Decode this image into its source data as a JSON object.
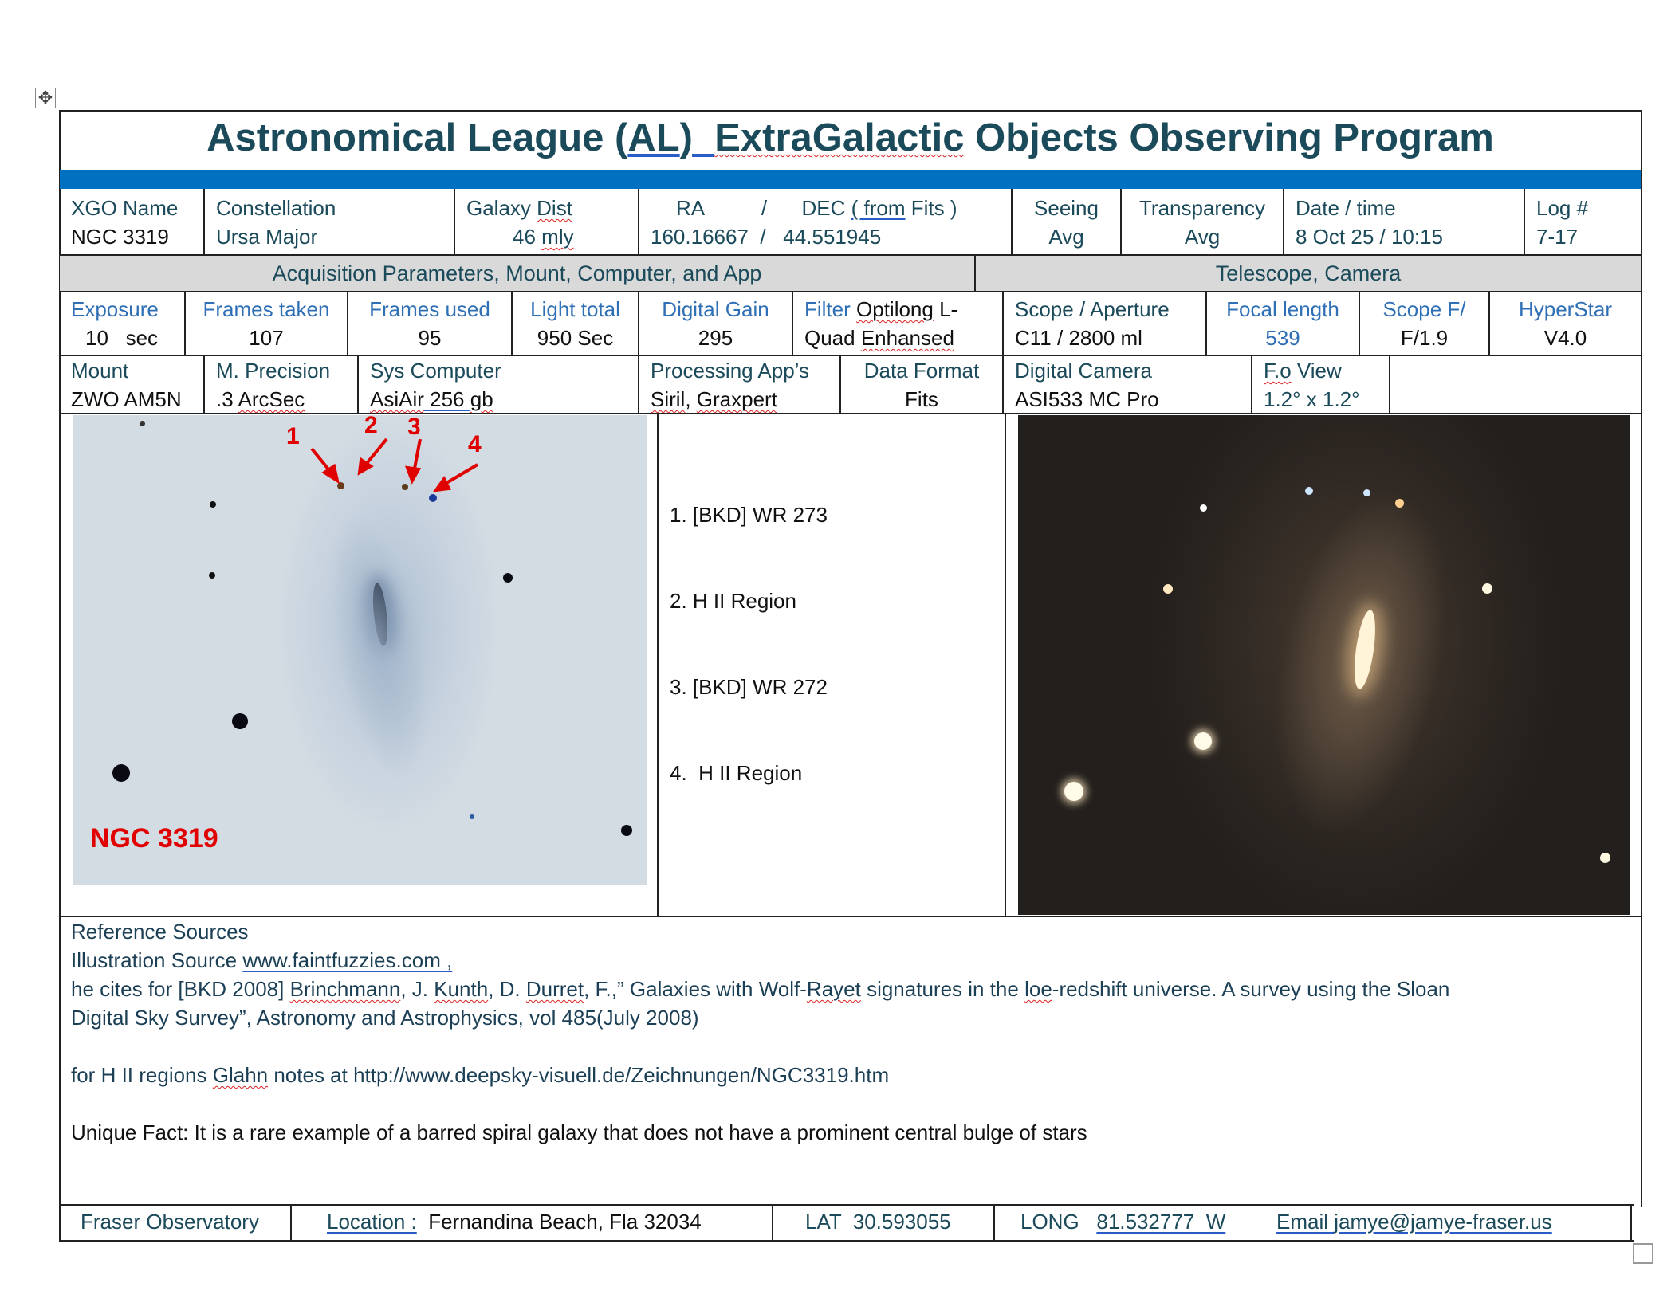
{
  "title": {
    "prefix": "Astronomical League (",
    "al": "AL",
    "mid": ")  ",
    "xg": "ExtraGalactic",
    "suffix": " Objects Observing Program"
  },
  "row1": {
    "xgo_label": "XGO Name",
    "xgo_value": "NGC 3319",
    "constellation_label": "Constellation",
    "constellation_value": "Ursa Major",
    "dist_label_a": "Galaxy ",
    "dist_label_b": "Dist",
    "dist_value_a": "46 ",
    "dist_value_b": "mly",
    "ra_label": "RA          /",
    "dec_label_a": "DEC ",
    "dec_label_b": "( from",
    "dec_label_c": " Fits )",
    "ra_value": "160.16667  /",
    "dec_value": "44.551945",
    "seeing_label": "Seeing",
    "seeing_value": "Avg",
    "transparency_label": "Transparency",
    "transparency_value": "Avg",
    "date_label": "Date / time",
    "date_value": "8 Oct 25 / 10:15",
    "log_label": "Log #",
    "log_value": "7-17"
  },
  "sections": {
    "acquisition": "Acquisition Parameters, Mount, Computer, and App",
    "telescope": "Telescope, Camera"
  },
  "row3": {
    "exposure_label": "Exposure",
    "exposure_value": "10   sec",
    "frames_taken_label": "Frames taken",
    "frames_taken_value": "107",
    "frames_used_label": "Frames used",
    "frames_used_value": "95",
    "light_total_label": "Light total",
    "light_total_value": "950 Sec",
    "gain_label": "Digital Gain",
    "gain_value": "295",
    "filter_label": "Filter",
    "filter_value_a": "Optilong",
    "filter_value_b": " L-",
    "filter_value_c": "Quad ",
    "filter_value_d": "Enhansed",
    "scope_label": "Scope / Aperture",
    "scope_value": "C11 / 2800 ml",
    "focal_label": "Focal length",
    "focal_value": "539",
    "scopef_label": "Scope F/",
    "scopef_value": "F/1.9",
    "hyperstar_label": "HyperStar",
    "hyperstar_value": "V4.0"
  },
  "row4": {
    "mount_label": "Mount",
    "mount_value": "ZWO AM5N",
    "precision_label": "M. Precision",
    "precision_value_a": ".3 ",
    "precision_value_b": "ArcSec",
    "computer_label": "Sys Computer",
    "computer_value_a": "AsiAir",
    "computer_value_b": " 256 ",
    "computer_value_c": "gb",
    "processing_label": "Processing App’s",
    "processing_value_a": "Siril",
    "processing_value_b": ", ",
    "processing_value_c": "Graxpert",
    "format_label": "Data Format",
    "format_value": "Fits",
    "camera_label": "Digital Camera",
    "camera_value": "ASI533 MC Pro",
    "fov_label_a": "F.o",
    "fov_label_b": " View",
    "fov_value": "1.2° x 1.2°"
  },
  "illustration": {
    "caption": "NGC 3319",
    "markers": [
      "1",
      "2",
      "3",
      "4"
    ]
  },
  "features": [
    "1. [BKD] WR 273",
    "2. H II Region",
    "3. [BKD] WR 272",
    "4.  H II Region"
  ],
  "references": {
    "heading": "Reference Sources",
    "illus_prefix": "Illustration Source ",
    "illus_link": "www.faintfuzzies.com ,",
    "cite_a": "he cites for [BKD 2008] ",
    "cite_b": "Brinchmann",
    "cite_c": ", J. ",
    "cite_d": "Kunth",
    "cite_e": ", D. ",
    "cite_f": "Durret",
    "cite_g": ", F.,” Galaxies with Wolf-",
    "cite_h": "Rayet",
    "cite_i": " signatures in the ",
    "cite_j": "loe",
    "cite_k": "-redshift universe. A survey using the Sloan",
    "cite_line2": "Digital Sky Survey”, Astronomy and Astrophysics, vol 485(July 2008)",
    "hii_a": "for H II regions ",
    "hii_b": "Glahn",
    "hii_c": " notes at http://www.deepsky-visuell.de/Zeichnungen/NGC3319.htm",
    "unique_fact": "Unique Fact: It is a rare example of a barred spiral galaxy that does not have a prominent central bulge of stars"
  },
  "footer": {
    "observatory": "Fraser Observatory",
    "location_label": "Location :",
    "location_value": "  Fernandina Beach, Fla 32034",
    "lat_label": "LAT  ",
    "lat_value": "30.593055",
    "long_label": "LONG   ",
    "long_value": "81.532777  W",
    "email_label": "Email ",
    "email_value": "jamye@jamye-fraser.us"
  },
  "colors": {
    "title": "#1b4a5a",
    "blue_bar": "#0070c0",
    "section_bg": "#d9d9d9",
    "label_blue": "#2f6fb5",
    "marker_red": "#e00000"
  }
}
